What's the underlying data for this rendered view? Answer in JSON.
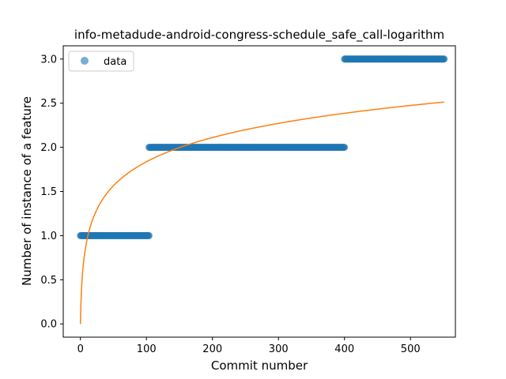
{
  "chart_data": {
    "type": "scatter",
    "title": "info-metadude-android-congress-schedule_safe_call-logarithm",
    "xlabel": "Commit number",
    "ylabel": "Number of instance of a feature",
    "xlim": [
      -26,
      568
    ],
    "ylim": [
      -0.15,
      3.15
    ],
    "xticks": [
      0,
      100,
      200,
      300,
      400,
      500
    ],
    "yticks": [
      0.0,
      0.5,
      1.0,
      1.5,
      2.0,
      2.5,
      3.0
    ],
    "ytick_labels": [
      "0.0",
      "0.5",
      "1.0",
      "1.5",
      "2.0",
      "2.5",
      "3.0"
    ],
    "grid": false,
    "legend": {
      "position": "upper-left",
      "entries": [
        "data"
      ]
    },
    "series": [
      {
        "name": "data",
        "kind": "scatter",
        "color": "#1f77b4",
        "segments": [
          {
            "x_start": 0,
            "x_end": 104,
            "y": 1
          },
          {
            "x_start": 104,
            "x_end": 400,
            "y": 2
          },
          {
            "x_start": 400,
            "x_end": 551,
            "y": 3
          }
        ]
      },
      {
        "kind": "line",
        "color": "#ff7f0e",
        "model": "a + b*ln(x+1)",
        "a": 0.0,
        "b": 0.398,
        "x_range": [
          0,
          551
        ]
      }
    ]
  }
}
